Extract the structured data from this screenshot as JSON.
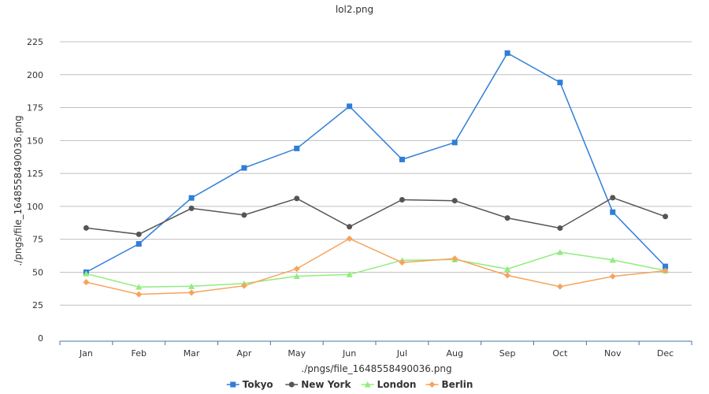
{
  "chart_data": {
    "type": "line",
    "title": "lol2.png",
    "xlabel": "./pngs/file_1648558490036.png",
    "ylabel": "./pngs/file_1648558490036.png",
    "categories": [
      "Jan",
      "Feb",
      "Mar",
      "Apr",
      "May",
      "Jun",
      "Jul",
      "Aug",
      "Sep",
      "Oct",
      "Nov",
      "Dec"
    ],
    "ylim": [
      0,
      225
    ],
    "yticks": [
      0,
      25,
      50,
      75,
      100,
      125,
      150,
      175,
      200,
      225
    ],
    "grid": true,
    "legend_position": "bottom",
    "series": [
      {
        "name": "Tokyo",
        "color": "#2f7ed8",
        "marker": "square",
        "values": [
          50,
          71.5,
          106.4,
          129.2,
          144,
          176,
          135.6,
          148.5,
          216.4,
          194.1,
          95.6,
          54.4
        ]
      },
      {
        "name": "New York",
        "color": "#555555",
        "marker": "circle",
        "values": [
          83.6,
          78.8,
          98.5,
          93.4,
          106,
          84.5,
          105,
          104.3,
          91.2,
          83.5,
          106.6,
          92.3
        ]
      },
      {
        "name": "London",
        "color": "#90ed7d",
        "marker": "triangle",
        "values": [
          48.9,
          38.8,
          39.3,
          41.4,
          47,
          48.3,
          59,
          59.6,
          52.4,
          65.2,
          59.3,
          51.2
        ]
      },
      {
        "name": "Berlin",
        "color": "#f7a35c",
        "marker": "diamond",
        "values": [
          42.4,
          33.2,
          34.5,
          39.7,
          52.6,
          75.5,
          57.4,
          60.4,
          47.6,
          39.1,
          46.8,
          51.1
        ]
      }
    ]
  }
}
